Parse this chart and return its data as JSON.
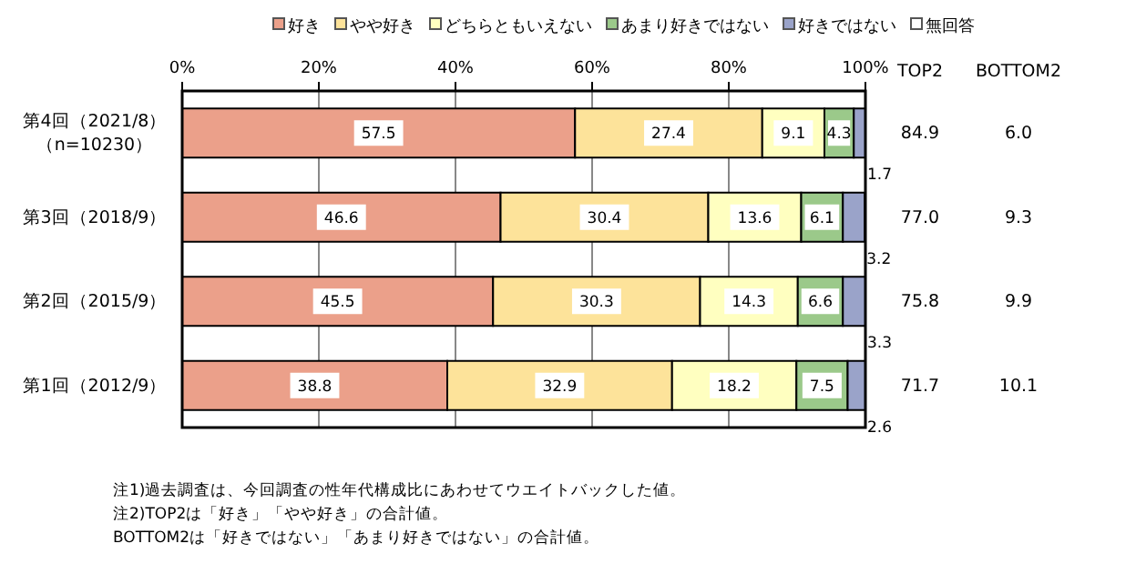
{
  "chart_data": [
    {
      "type": "bar",
      "orientation": "horizontal",
      "stacked": true,
      "grid": "x",
      "legend": "top",
      "categories": [
        "第4回（2021/8）（n=10230）",
        "第3回（2018/9）",
        "第2回（2015/9）",
        "第1回（2012/9）"
      ],
      "xlim": [
        0,
        100
      ],
      "xticks": [
        {
          "value": 0,
          "label": "0%"
        },
        {
          "value": 20,
          "label": "20%"
        },
        {
          "value": 40,
          "label": "40%"
        },
        {
          "value": 60,
          "label": "60%"
        },
        {
          "value": 80,
          "label": "80%"
        },
        {
          "value": 100,
          "label": "100%"
        }
      ],
      "series": [
        {
          "name": "好き",
          "color": "#eba08a",
          "values": [
            57.5,
            46.6,
            45.5,
            38.8
          ],
          "value_labels": [
            "57.5",
            "46.6",
            "45.5",
            "38.8"
          ]
        },
        {
          "name": "やや好き",
          "color": "#fde39a",
          "values": [
            27.4,
            30.4,
            30.3,
            32.9
          ],
          "value_labels": [
            "27.4",
            "30.4",
            "30.3",
            "32.9"
          ]
        },
        {
          "name": "どちらともいえない",
          "color": "#ffffc0",
          "values": [
            9.1,
            13.6,
            14.3,
            18.2
          ],
          "value_labels": [
            "9.1",
            "13.6",
            "14.3",
            "18.2"
          ]
        },
        {
          "name": "あまり好きではない",
          "color": "#9bc98a",
          "values": [
            4.3,
            6.1,
            6.6,
            7.5
          ],
          "value_labels": [
            "4.3",
            "6.1",
            "6.6",
            "7.5"
          ]
        },
        {
          "name": "好きではない",
          "color": "#9aa3c9",
          "values": [
            1.7,
            3.2,
            3.3,
            2.6
          ],
          "value_labels": [
            "1.7",
            "3.2",
            "3.3",
            "2.6"
          ]
        },
        {
          "name": "無回答",
          "color": "#ffffff",
          "values": [
            0,
            0,
            0,
            0
          ]
        }
      ],
      "annotations": [
        "注1)過去調査は、今回調査の性年代構成比にあわせてウエイトバックした値。",
        "注2)TOP2は「好き」「やや好き」の合計値。",
        "BOTTOM2は「好きではない」「あまり好きではない」の合計値。"
      ]
    },
    {
      "type": "other",
      "annotations": [
        "TOP2",
        "BOTTOM2",
        "84.9",
        "6.0",
        "77.0",
        "9.3",
        "75.8",
        "9.9",
        "71.7",
        "10.1"
      ]
    }
  ]
}
